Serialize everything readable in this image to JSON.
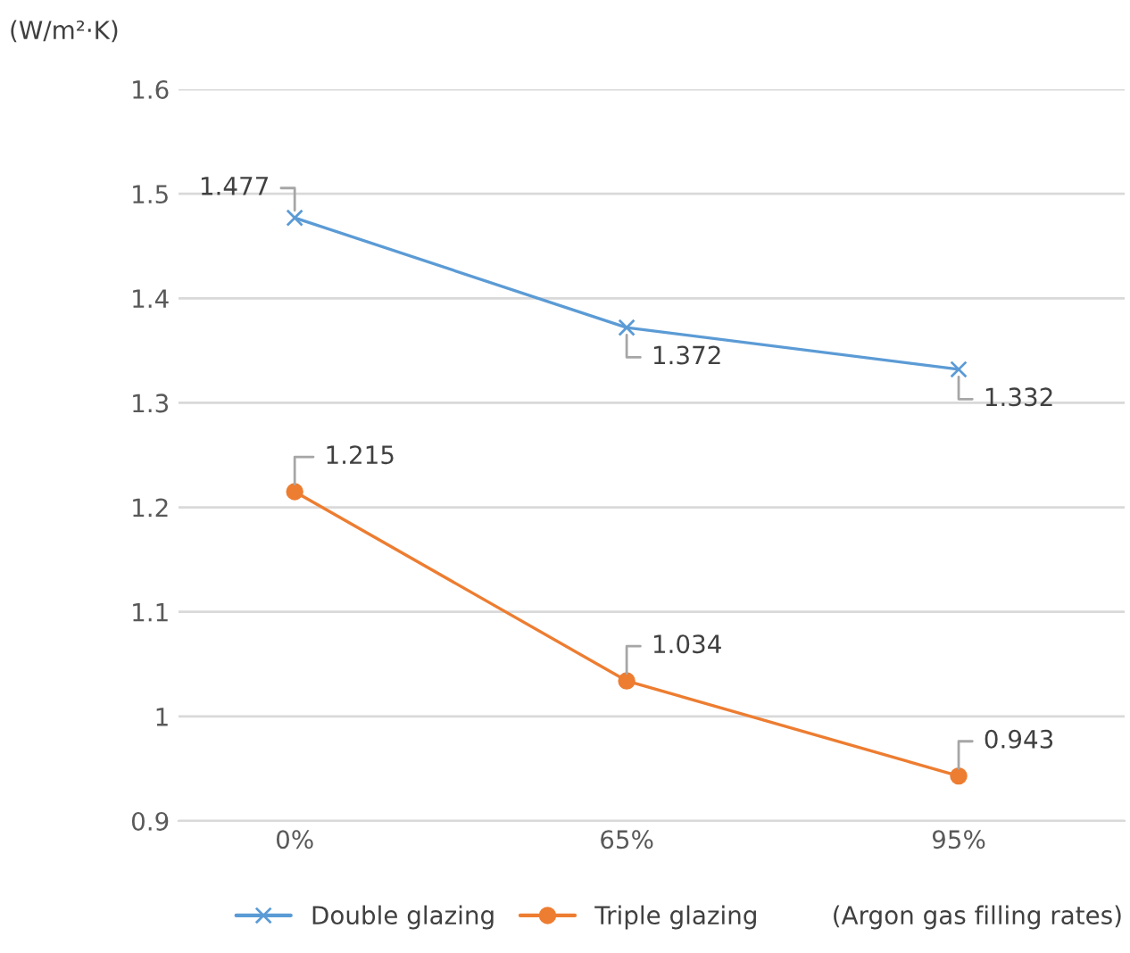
{
  "chart_data": {
    "type": "line",
    "ylabel": "(W/m²·K)",
    "xlabel": "(Argon gas filling rates)",
    "categories": [
      "0%",
      "65%",
      "95%"
    ],
    "series": [
      {
        "name": "Double glazing",
        "color": "#5b9bd5",
        "marker": "cross",
        "values": [
          1.477,
          1.372,
          1.332
        ]
      },
      {
        "name": "Triple glazing",
        "color": "#ed7d31",
        "marker": "circle",
        "values": [
          1.215,
          1.034,
          0.943
        ]
      }
    ],
    "ylim": [
      0.9,
      1.6
    ],
    "yticks": [
      0.9,
      {
        "value": 1,
        "label": "1"
      },
      1.1,
      1.2,
      1.3,
      1.4,
      1.5,
      1.6
    ],
    "grid": "y",
    "legend": "bottom",
    "data_labels": true,
    "line_style": "solid"
  }
}
